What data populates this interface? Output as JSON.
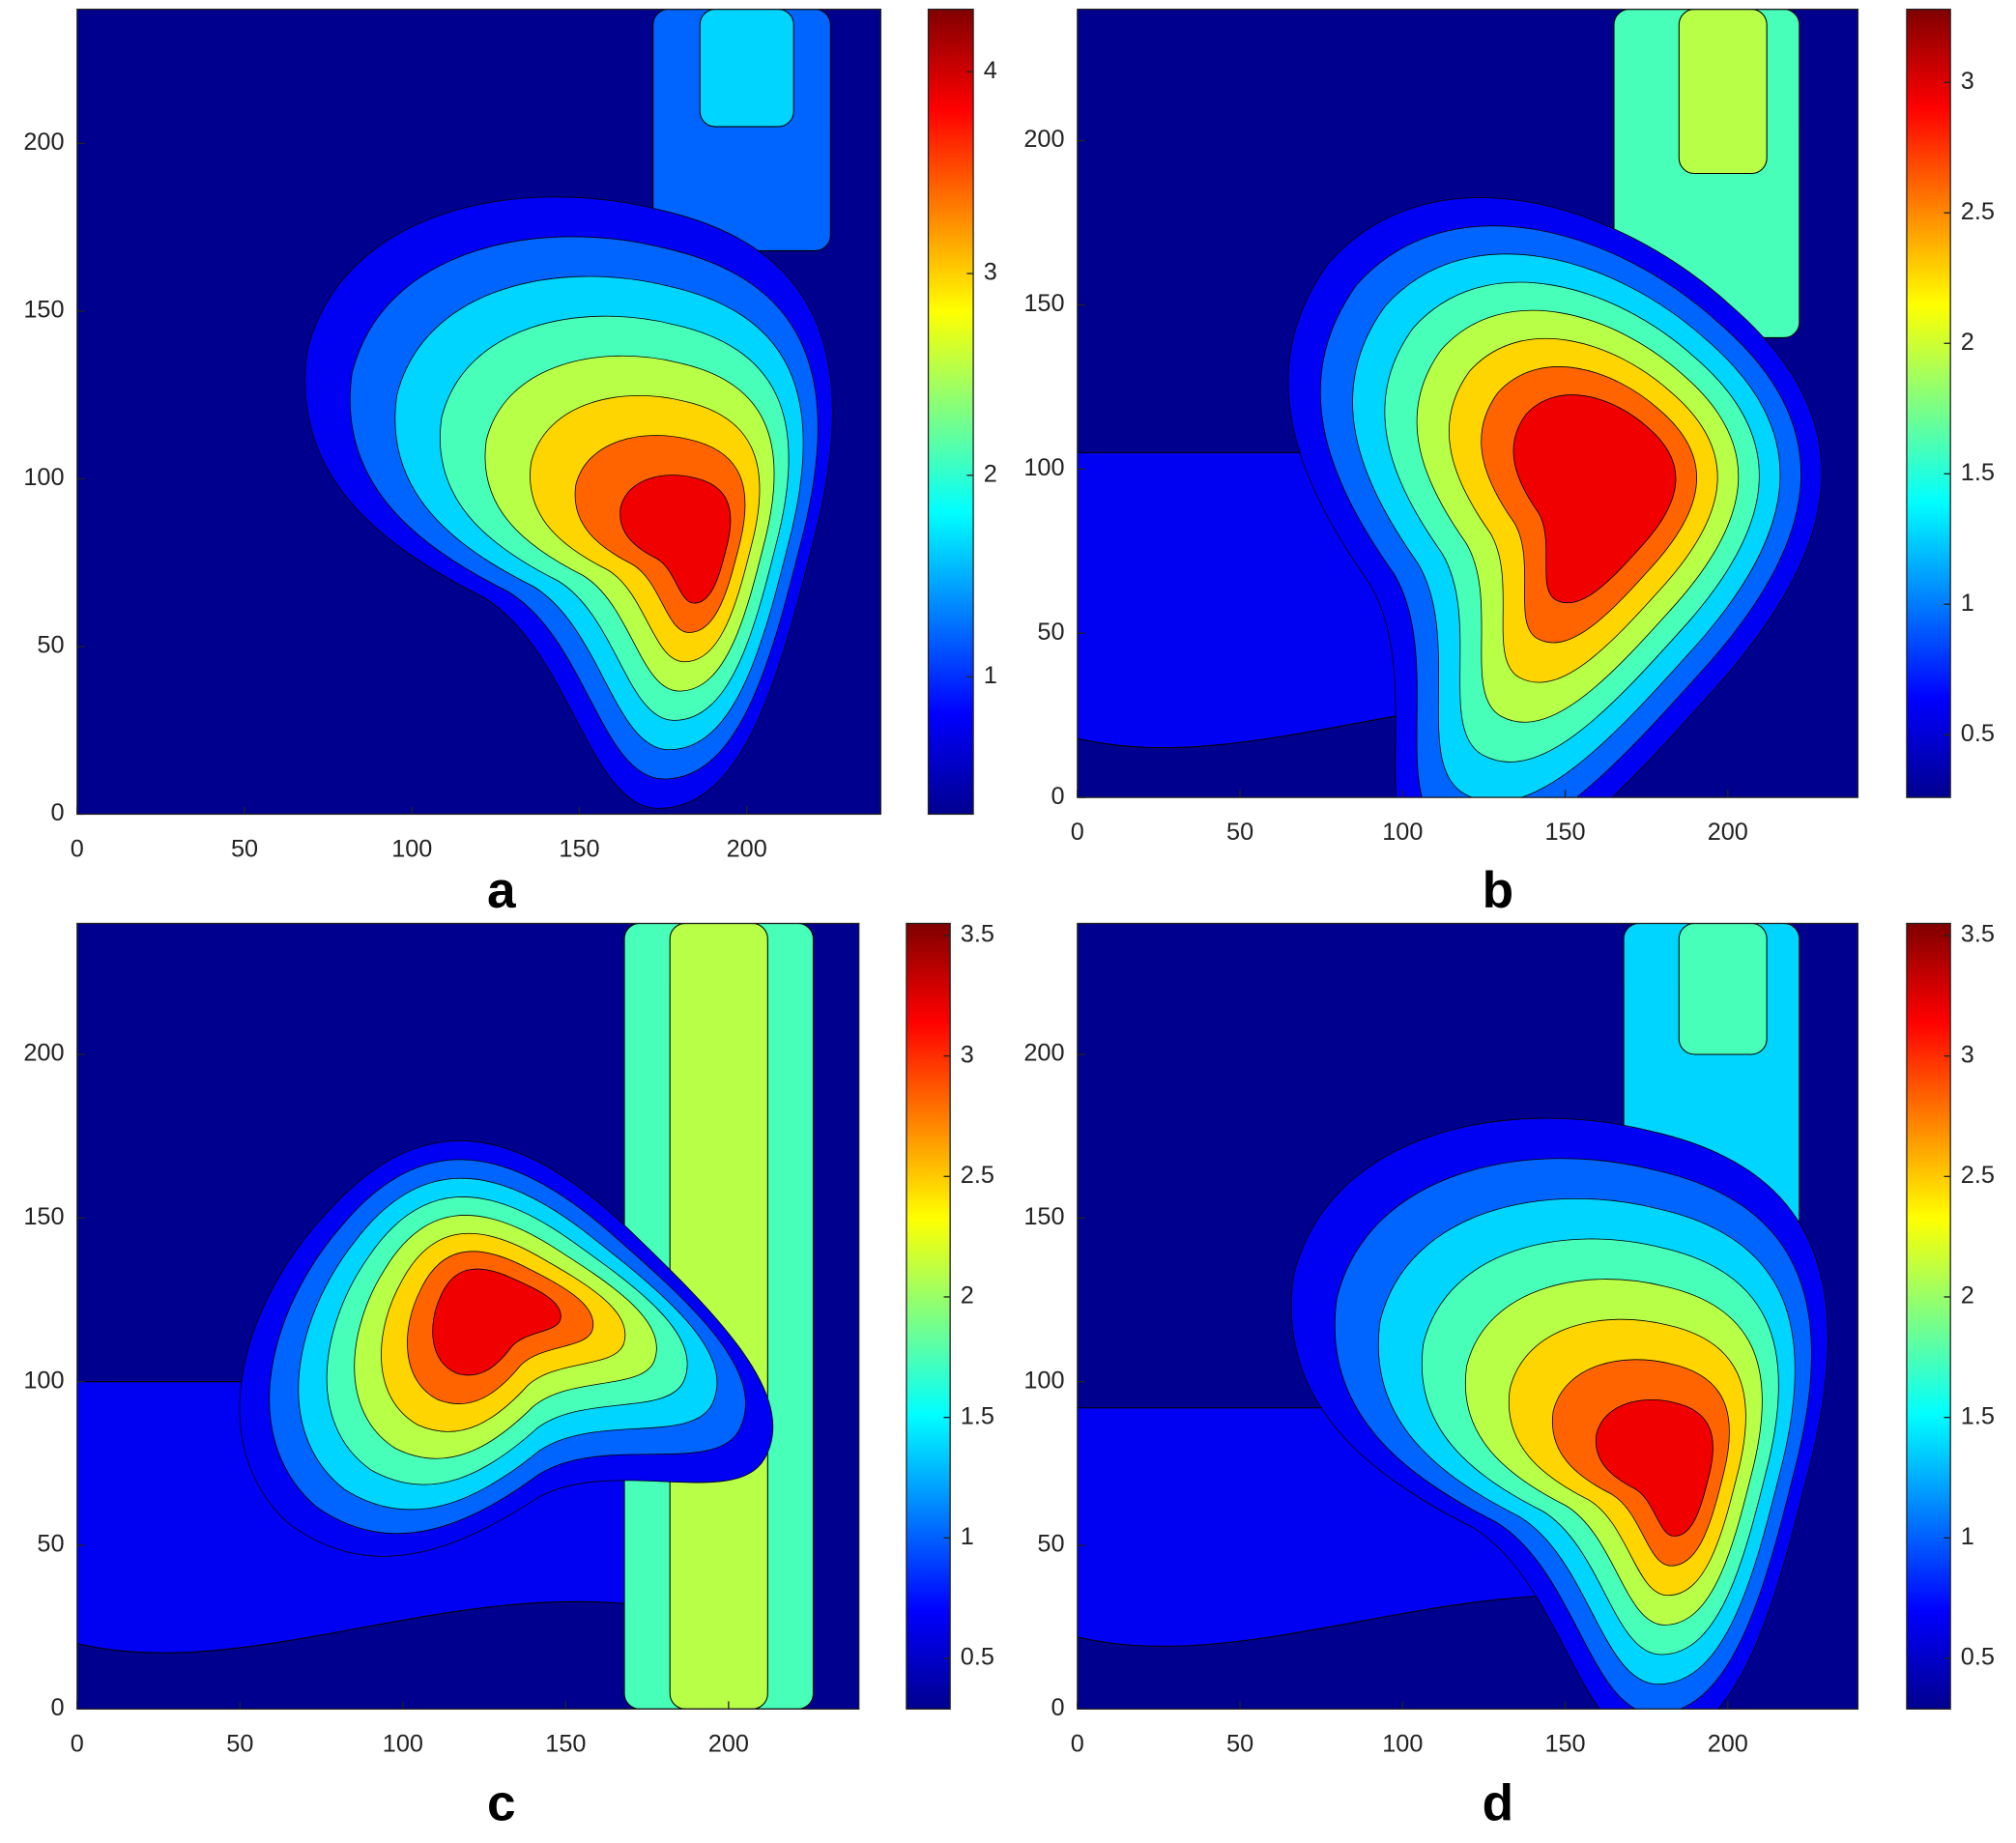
{
  "chart_data": [
    {
      "type": "contour",
      "label": "a",
      "colormap": "jet",
      "xlim": [
        0,
        240
      ],
      "ylim": [
        0,
        240
      ],
      "xticks": [
        0,
        50,
        100,
        150,
        200
      ],
      "yticks": [
        0,
        50,
        100,
        150,
        200
      ],
      "colorbar": {
        "clim": [
          0.32,
          4.31
        ],
        "ticks": [
          1,
          2,
          3,
          4
        ]
      }
    },
    {
      "type": "contour",
      "label": "b",
      "colormap": "jet",
      "xlim": [
        0,
        240
      ],
      "ylim": [
        0,
        240
      ],
      "xticks": [
        0,
        50,
        100,
        150,
        200
      ],
      "yticks": [
        0,
        50,
        100,
        150,
        200
      ],
      "colorbar": {
        "clim": [
          0.26,
          3.28
        ],
        "ticks": [
          0.5,
          1,
          1.5,
          2,
          2.5,
          3
        ]
      }
    },
    {
      "type": "contour",
      "label": "c",
      "colormap": "jet",
      "xlim": [
        0,
        240
      ],
      "ylim": [
        0,
        240
      ],
      "xticks": [
        0,
        50,
        100,
        150,
        200
      ],
      "yticks": [
        0,
        50,
        100,
        150,
        200
      ],
      "colorbar": {
        "clim": [
          0.29,
          3.55
        ],
        "ticks": [
          0.5,
          1,
          1.5,
          2,
          2.5,
          3,
          3.5
        ]
      }
    },
    {
      "type": "contour",
      "label": "d",
      "colormap": "jet",
      "xlim": [
        0,
        240
      ],
      "ylim": [
        0,
        240
      ],
      "xticks": [
        0,
        50,
        100,
        150,
        200
      ],
      "yticks": [
        0,
        50,
        100,
        150,
        200
      ],
      "colorbar": {
        "clim": [
          0.29,
          3.55
        ],
        "ticks": [
          0.5,
          1,
          1.5,
          2,
          2.5,
          3,
          3.5
        ]
      }
    }
  ]
}
